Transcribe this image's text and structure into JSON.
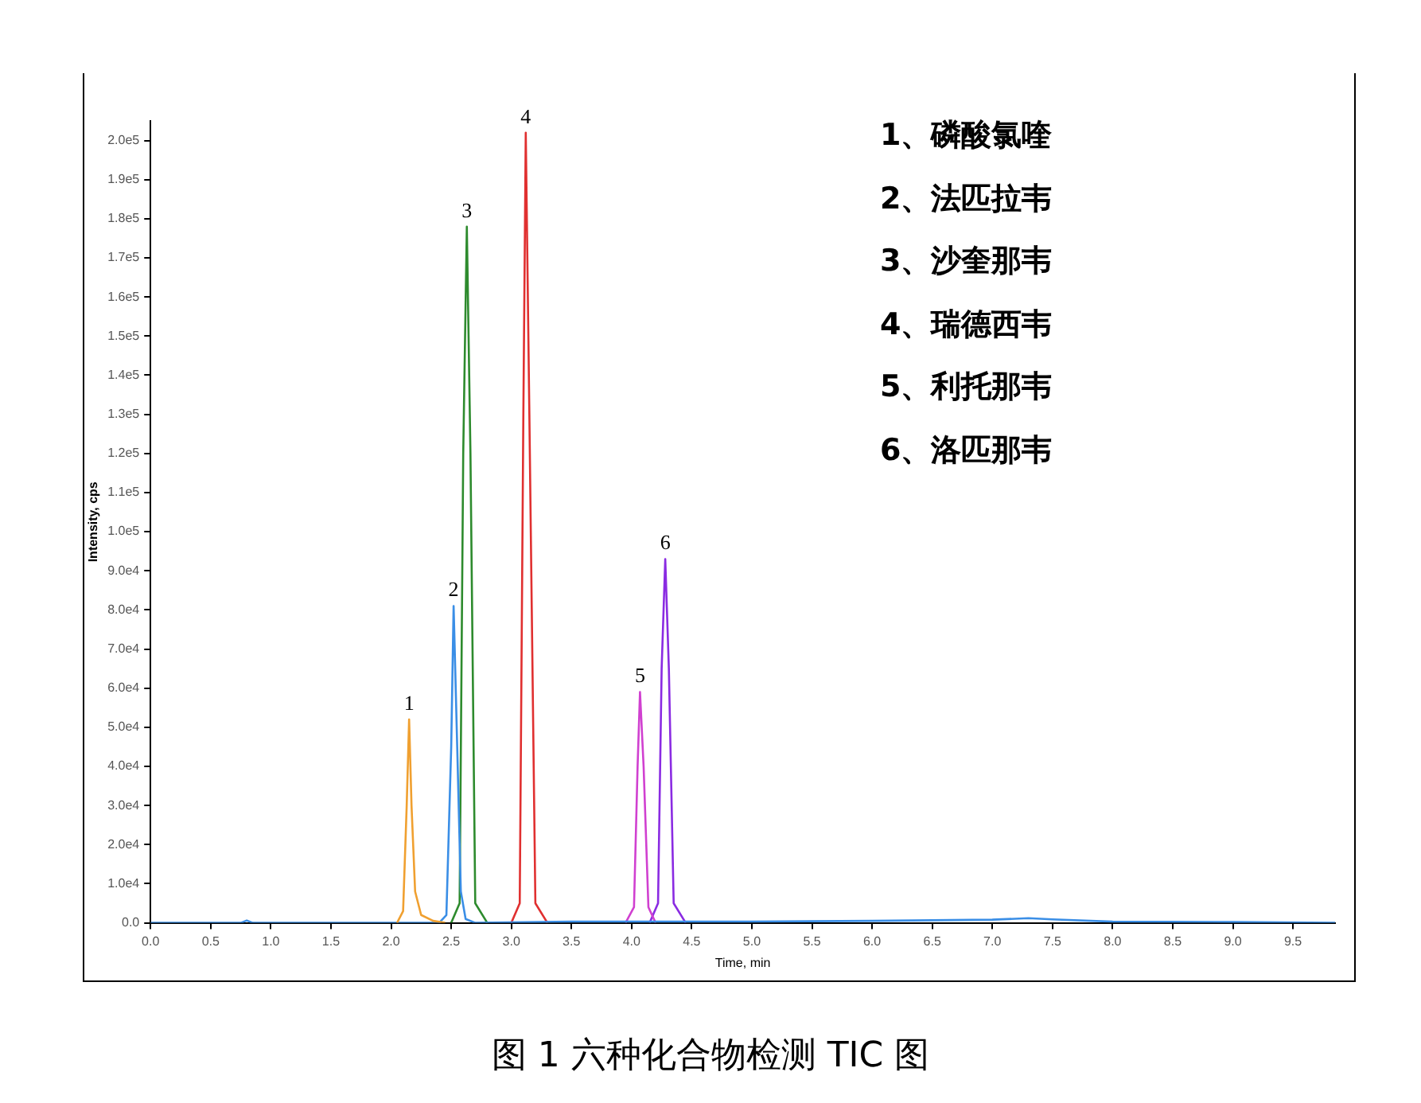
{
  "chart_data": {
    "type": "line",
    "title": "图 1 六种化合物检测 TIC 图",
    "xlabel": "Time, min",
    "ylabel": "Intensity, cps",
    "xlim": [
      0,
      9.85
    ],
    "xticks": [
      {
        "value": 0,
        "label": "0.0"
      },
      0.5,
      {
        "value": 1,
        "label": "1.0"
      },
      1.5,
      {
        "value": 2,
        "label": "2.0"
      },
      2.5,
      {
        "value": 3,
        "label": "3.0"
      },
      3.5,
      {
        "value": 4,
        "label": "4.0"
      },
      4.5,
      {
        "value": 5,
        "label": "5.0"
      },
      5.5,
      {
        "value": 6,
        "label": "6.0"
      },
      6.5,
      {
        "value": 7,
        "label": "7.0"
      },
      7.5,
      {
        "value": 8,
        "label": "8.0"
      },
      8.5,
      {
        "value": 9,
        "label": "9.0"
      },
      9.5
    ],
    "ylim": [
      0,
      205000
    ],
    "yticks": [
      {
        "value": 0,
        "label": "0.0"
      },
      {
        "value": 10000,
        "label": "1.0e4"
      },
      {
        "value": 20000,
        "label": "2.0e4"
      },
      {
        "value": 30000,
        "label": "3.0e4"
      },
      {
        "value": 40000,
        "label": "4.0e4"
      },
      {
        "value": 50000,
        "label": "5.0e4"
      },
      {
        "value": 60000,
        "label": "6.0e4"
      },
      {
        "value": 70000,
        "label": "7.0e4"
      },
      {
        "value": 80000,
        "label": "8.0e4"
      },
      {
        "value": 90000,
        "label": "9.0e4"
      },
      {
        "value": 100000,
        "label": "1.0e5"
      },
      {
        "value": 110000,
        "label": "1.1e5"
      },
      {
        "value": 120000,
        "label": "1.2e5"
      },
      {
        "value": 130000,
        "label": "1.3e5"
      },
      {
        "value": 140000,
        "label": "1.4e5"
      },
      {
        "value": 150000,
        "label": "1.5e5"
      },
      {
        "value": 160000,
        "label": "1.6e5"
      },
      {
        "value": 170000,
        "label": "1.7e5"
      },
      {
        "value": 180000,
        "label": "1.8e5"
      },
      {
        "value": 190000,
        "label": "1.9e5"
      },
      {
        "value": 200000,
        "label": "2.0e5"
      }
    ],
    "grid": false,
    "legend": false,
    "marker": "none",
    "line_style": "solid",
    "series": [
      {
        "color": "#f0a030",
        "x": [
          2.05,
          2.1,
          2.13,
          2.15,
          2.17,
          2.2,
          2.25,
          2.35,
          2.45
        ],
        "values": [
          0,
          3000,
          30000,
          52000,
          30000,
          8000,
          2000,
          500,
          0
        ]
      },
      {
        "color": "#3a8ee6",
        "x": [
          0,
          0.75,
          0.8,
          0.85,
          2.4,
          2.46,
          2.5,
          2.52,
          2.55,
          2.58,
          2.62,
          2.7,
          3.5,
          5,
          6,
          7,
          7.3,
          7.5,
          8,
          9,
          9.85
        ],
        "values": [
          0,
          0,
          600,
          0,
          0,
          2000,
          45000,
          81000,
          45000,
          8000,
          1000,
          0,
          300,
          300,
          500,
          800,
          1200,
          900,
          300,
          200,
          0
        ]
      },
      {
        "color": "#2e8b2e",
        "x": [
          2.5,
          2.57,
          2.6,
          2.63,
          2.66,
          2.7,
          2.8
        ],
        "values": [
          0,
          5000,
          120000,
          178000,
          120000,
          5000,
          0
        ]
      },
      {
        "color": "#e03030",
        "x": [
          3.0,
          3.07,
          3.1,
          3.12,
          3.15,
          3.2,
          3.3
        ],
        "values": [
          0,
          5000,
          130000,
          202000,
          130000,
          5000,
          0
        ]
      },
      {
        "color": "#d040d0",
        "x": [
          3.95,
          4.02,
          4.05,
          4.07,
          4.1,
          4.14,
          4.2
        ],
        "values": [
          0,
          4000,
          40000,
          59000,
          40000,
          4000,
          0
        ]
      },
      {
        "color": "#8a2be2",
        "x": [
          4.15,
          4.22,
          4.25,
          4.28,
          4.31,
          4.35,
          4.45
        ],
        "values": [
          0,
          5000,
          65000,
          93000,
          65000,
          5000,
          0
        ]
      }
    ],
    "annotations": [
      {
        "text": "1",
        "x": 2.15,
        "y": 52000
      },
      {
        "text": "2",
        "x": 2.52,
        "y": 81000
      },
      {
        "text": "3",
        "x": 2.63,
        "y": 178000
      },
      {
        "text": "4",
        "x": 3.12,
        "y": 202000
      },
      {
        "text": "5",
        "x": 4.07,
        "y": 59000
      },
      {
        "text": "6",
        "x": 4.28,
        "y": 93000
      },
      "1、磷酸氯喹",
      "2、法匹拉韦",
      "3、沙奎那韦",
      "4、瑞德西韦",
      "5、利托那韦",
      "6、洛匹那韦"
    ]
  }
}
